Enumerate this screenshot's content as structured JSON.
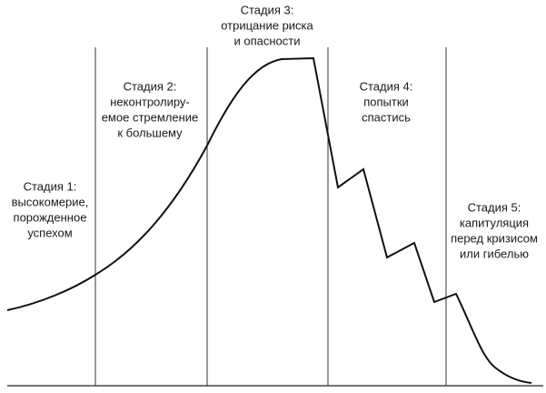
{
  "stages": [
    {
      "lines": [
        "Стадия 1:",
        "высокомерие,",
        "порожденное",
        "успехом"
      ]
    },
    {
      "lines": [
        "Стадия 2:",
        "неконтролиру-",
        "емое стремление",
        "к большему"
      ]
    },
    {
      "lines": [
        "Стадия 3:",
        "отрицание риска",
        "и опасности"
      ]
    },
    {
      "lines": [
        "Стадия 4:",
        "попытки",
        "спастись"
      ]
    },
    {
      "lines": [
        "Стадия 5:",
        "капитуляция",
        "перед кризисом",
        "или гибелью"
      ]
    }
  ]
}
